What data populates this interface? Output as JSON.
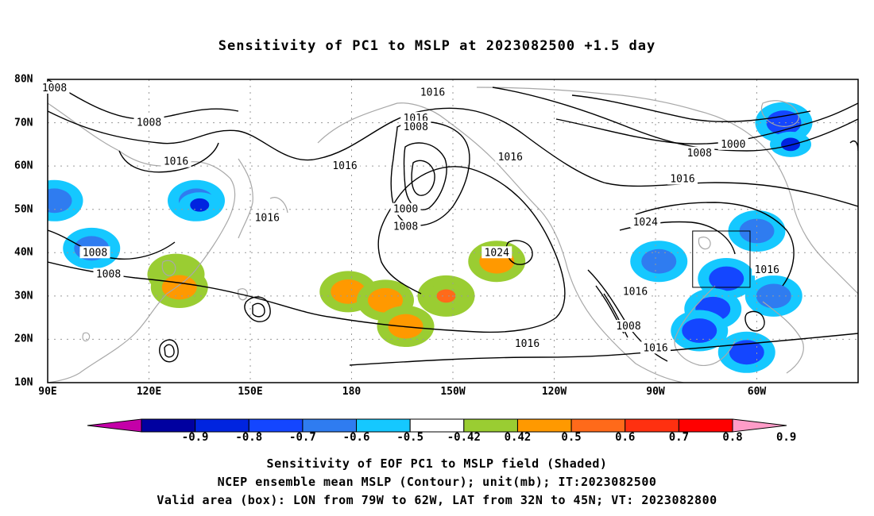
{
  "title": "Sensitivity of PC1 to MSLP at 2023082500 +1.5 day",
  "captions": [
    "Sensitivity of EOF PC1 to MSLP field (Shaded)",
    "NCEP ensemble mean MSLP (Contour); unit(mb); IT:2023082500",
    "Valid area (box): LON from 79W to 62W, LAT from 32N to 45N; VT: 2023082800"
  ],
  "lat_labels": [
    "80N",
    "70N",
    "60N",
    "50N",
    "40N",
    "30N",
    "20N",
    "10N"
  ],
  "lon_labels": [
    "90E",
    "120E",
    "150E",
    "180",
    "150W",
    "120W",
    "90W",
    "60W"
  ],
  "colorbar": {
    "labels": [
      "-0.9",
      "-0.8",
      "-0.7",
      "-0.6",
      "-0.5",
      "-0.42",
      "0.42",
      "0.5",
      "0.6",
      "0.7",
      "0.8",
      "0.9"
    ],
    "colors": [
      "#c400a8",
      "#0000a0",
      "#0024e0",
      "#1446ff",
      "#2f7cf0",
      "#15c8ff",
      "#ffffff",
      "#9acd32",
      "#ff9900",
      "#ff6a1a",
      "#ff3010",
      "#ff0000",
      "#ff9cc8"
    ]
  },
  "contour_labels": [
    {
      "text": "1008",
      "lon": 92,
      "lat": 78
    },
    {
      "text": "1008",
      "lon": 120,
      "lat": 70
    },
    {
      "text": "1016",
      "lon": 128,
      "lat": 61
    },
    {
      "text": "1016",
      "lon": 155,
      "lat": 48
    },
    {
      "text": "1008",
      "lon": 104,
      "lat": 40
    },
    {
      "text": "1008",
      "lon": 108,
      "lat": 35
    },
    {
      "text": "1016",
      "lon": 204,
      "lat": 77
    },
    {
      "text": "1016",
      "lon": 199,
      "lat": 71
    },
    {
      "text": "1008",
      "lon": 199,
      "lat": 69
    },
    {
      "text": "1016",
      "lon": 178,
      "lat": 60
    },
    {
      "text": "1016",
      "lon": 227,
      "lat": 62
    },
    {
      "text": "1000",
      "lon": 196,
      "lat": 50
    },
    {
      "text": "1008",
      "lon": 196,
      "lat": 46
    },
    {
      "text": "1024",
      "lon": 223,
      "lat": 40
    },
    {
      "text": "1016",
      "lon": 232,
      "lat": 19
    },
    {
      "text": "1016",
      "lon": 264,
      "lat": 31
    },
    {
      "text": "1008",
      "lon": 262,
      "lat": 23
    },
    {
      "text": "1016",
      "lon": 270,
      "lat": 18
    },
    {
      "text": "1008",
      "lon": 283,
      "lat": 63
    },
    {
      "text": "1000",
      "lon": 293,
      "lat": 65
    },
    {
      "text": "1016",
      "lon": 278,
      "lat": 57
    },
    {
      "text": "1024",
      "lon": 267,
      "lat": 47
    },
    {
      "text": "1016",
      "lon": 303,
      "lat": 36
    }
  ],
  "valid_box": {
    "lon_min": 281,
    "lon_max": 298,
    "lat_min": 32,
    "lat_max": 45
  },
  "shading": [
    {
      "lon": 134,
      "lat": 52,
      "value": -0.55
    },
    {
      "lon": 135,
      "lat": 51,
      "value": -0.75
    },
    {
      "lon": 103,
      "lat": 41,
      "value": -0.55
    },
    {
      "lon": 128,
      "lat": 35,
      "value": 0.5
    },
    {
      "lon": 129,
      "lat": 32,
      "value": 0.6
    },
    {
      "lon": 179,
      "lat": 31,
      "value": 0.6
    },
    {
      "lon": 190,
      "lat": 29,
      "value": 0.65
    },
    {
      "lon": 196,
      "lat": 23,
      "value": 0.6
    },
    {
      "lon": 208,
      "lat": 30,
      "value": 0.6
    },
    {
      "lon": 208,
      "lat": 30,
      "value": 0.7
    },
    {
      "lon": 223,
      "lat": 38,
      "value": 0.6
    },
    {
      "lon": 92,
      "lat": 52,
      "value": -0.5
    },
    {
      "lon": 271,
      "lat": 38,
      "value": -0.55
    },
    {
      "lon": 291,
      "lat": 34,
      "value": -0.6
    },
    {
      "lon": 287,
      "lat": 27,
      "value": -0.65
    },
    {
      "lon": 283,
      "lat": 22,
      "value": -0.6
    },
    {
      "lon": 297,
      "lat": 17,
      "value": -0.6
    },
    {
      "lon": 305,
      "lat": 30,
      "value": -0.5
    },
    {
      "lon": 308,
      "lat": 70,
      "value": -0.6
    },
    {
      "lon": 310,
      "lat": 65,
      "value": -0.75
    },
    {
      "lon": 300,
      "lat": 45,
      "value": -0.5
    }
  ]
}
